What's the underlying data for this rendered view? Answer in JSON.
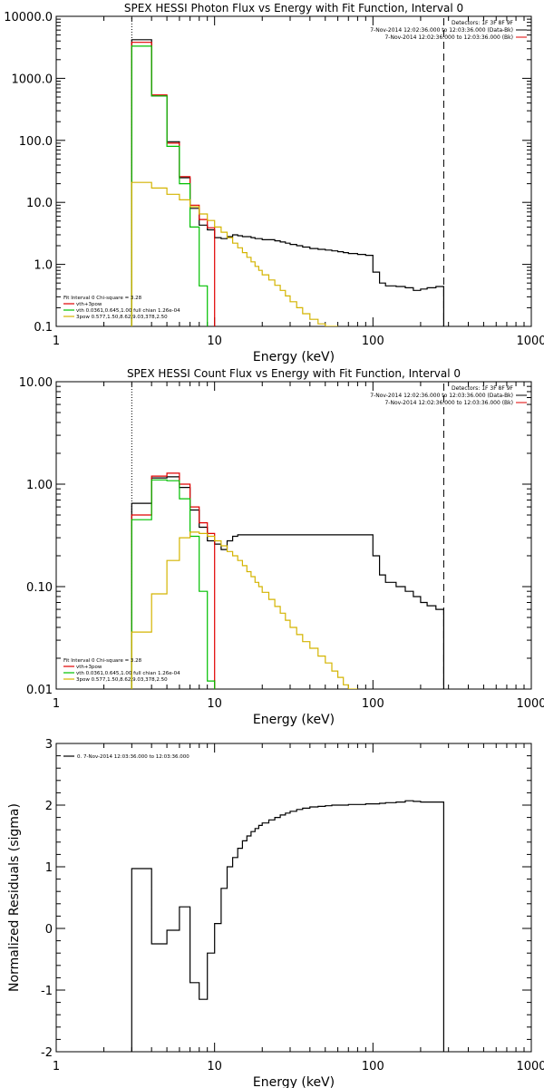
{
  "chart_data": [
    {
      "type": "line",
      "title": "SPEX HESSI Photon Flux vs Energy with Fit Function, Interval 0",
      "xlabel": "Energy (keV)",
      "ylabel": "",
      "xscale": "log",
      "yscale": "log",
      "xlim": [
        1,
        1000
      ],
      "ylim": [
        0.1,
        10000
      ],
      "x_ticks": [
        "1",
        "10",
        "100",
        "1000"
      ],
      "y_ticks": [
        "0.1",
        "1.0",
        "10.0",
        "100.0",
        "1000.0",
        "10000.0"
      ],
      "header": [
        "Detectors: 1F 3F 8F 9F",
        "7-Nov-2014 12:02:36.000 to 12:03:36.000 (Data-Bk)",
        "7-Nov-2014 12:02:36.000 to 12:03:36.000 (Bk)"
      ],
      "legend_placement": "bottom-left",
      "legend": [
        "Fit Interval 0   Chi-square = 3.28",
        "vth+3pow",
        "vth 0.0361,0.645,1.00  full chian 1.26e-04",
        "3pow 0.577,1.50,8.62,9.03,378,2.50"
      ],
      "vlines": [
        {
          "x": 3.0,
          "style": "dotted"
        },
        {
          "x": 280,
          "style": "dashed"
        }
      ],
      "series": [
        {
          "name": "Data-Bk",
          "color": "#000000",
          "edges": [
            3,
            4,
            5,
            6,
            7,
            8,
            9,
            10,
            11,
            12,
            13,
            14,
            15,
            16,
            17,
            18,
            19,
            20,
            22,
            24,
            26,
            28,
            30,
            33,
            36,
            40,
            45,
            50,
            55,
            60,
            65,
            70,
            80,
            90,
            100,
            110,
            120,
            140,
            160,
            180,
            200,
            220,
            250,
            280
          ],
          "values": [
            4200,
            520,
            95,
            25,
            8,
            4.3,
            3.6,
            2.7,
            2.6,
            2.8,
            3.0,
            2.9,
            2.8,
            2.8,
            2.7,
            2.6,
            2.6,
            2.5,
            2.5,
            2.4,
            2.3,
            2.2,
            2.1,
            2.0,
            1.9,
            1.8,
            1.75,
            1.7,
            1.65,
            1.6,
            1.55,
            1.5,
            1.45,
            1.4,
            0.75,
            0.5,
            0.45,
            0.44,
            0.42,
            0.38,
            0.4,
            0.42,
            0.44
          ]
        },
        {
          "name": "vth+3pow",
          "color": "#e00000",
          "edges": [
            3,
            4,
            5,
            6,
            7,
            8,
            9,
            10
          ],
          "values": [
            3800,
            540,
            90,
            26,
            9,
            5.3,
            3.9
          ]
        },
        {
          "name": "vth",
          "color": "#00c000",
          "edges": [
            3,
            4,
            5,
            6,
            7,
            8,
            9
          ],
          "values": [
            3300,
            520,
            80,
            20,
            4,
            0.45
          ]
        },
        {
          "name": "3pow",
          "color": "#d4b400",
          "edges": [
            3,
            4,
            5,
            6,
            7,
            8,
            9,
            10,
            11,
            12,
            13,
            14,
            15,
            16,
            17,
            18,
            19,
            20,
            22,
            24,
            26,
            28,
            30,
            33,
            36,
            40,
            45,
            50,
            55,
            60
          ],
          "values": [
            21,
            17,
            13.5,
            11,
            8.5,
            6.5,
            5.1,
            4.0,
            3.3,
            2.7,
            2.2,
            1.85,
            1.55,
            1.3,
            1.1,
            0.93,
            0.8,
            0.68,
            0.56,
            0.46,
            0.38,
            0.31,
            0.25,
            0.2,
            0.16,
            0.13,
            0.11,
            0.1,
            0.1
          ]
        }
      ]
    },
    {
      "type": "line",
      "title": "SPEX HESSI Count Flux vs Energy with Fit Function, Interval 0",
      "xlabel": "Energy (keV)",
      "ylabel": "",
      "xscale": "log",
      "yscale": "log",
      "xlim": [
        1,
        1000
      ],
      "ylim": [
        0.01,
        10
      ],
      "x_ticks": [
        "1",
        "10",
        "100",
        "1000"
      ],
      "y_ticks": [
        "0.01",
        "0.10",
        "1.00",
        "10.00"
      ],
      "header": [
        "Detectors: 1F 3F 8F 9F",
        "7-Nov-2014 12:02:36.000 to 12:03:36.000 (Data-Bk)",
        "7-Nov-2014 12:02:36.000 to 12:03:36.000 (Bk)"
      ],
      "legend_placement": "bottom-left",
      "legend": [
        "Fit Interval 0   Chi-square = 3.28",
        "vth+3pow",
        "vth 0.0361,0.645,1.00  full chian 1.26e-04",
        "3pow 0.577,1.50,8.62,9.03,378,2.50"
      ],
      "vlines": [
        {
          "x": 3.0,
          "style": "dotted"
        },
        {
          "x": 280,
          "style": "dashed"
        }
      ],
      "series": [
        {
          "name": "Data-Bk",
          "color": "#000000",
          "edges": [
            3,
            4,
            5,
            6,
            7,
            8,
            9,
            10,
            11,
            12,
            13,
            14,
            15,
            16,
            18,
            20,
            22,
            25,
            28,
            32,
            36,
            40,
            45,
            50,
            60,
            70,
            80,
            90,
            100,
            110,
            120,
            140,
            160,
            180,
            200,
            220,
            250,
            280
          ],
          "values": [
            0.65,
            1.15,
            1.18,
            0.93,
            0.56,
            0.38,
            0.28,
            0.26,
            0.23,
            0.28,
            0.31,
            0.32,
            0.32,
            0.32,
            0.32,
            0.32,
            0.32,
            0.32,
            0.32,
            0.32,
            0.32,
            0.32,
            0.32,
            0.32,
            0.32,
            0.32,
            0.32,
            0.32,
            0.2,
            0.13,
            0.11,
            0.1,
            0.09,
            0.08,
            0.07,
            0.065,
            0.06
          ]
        },
        {
          "name": "vth+3pow",
          "color": "#e00000",
          "edges": [
            3,
            4,
            5,
            6,
            7,
            8,
            9,
            10
          ],
          "values": [
            0.5,
            1.2,
            1.28,
            1.0,
            0.6,
            0.42,
            0.33
          ]
        },
        {
          "name": "vth",
          "color": "#00c000",
          "edges": [
            3,
            4,
            5,
            6,
            7,
            8,
            9,
            10
          ],
          "values": [
            0.45,
            1.1,
            1.08,
            0.72,
            0.31,
            0.09,
            0.012
          ]
        },
        {
          "name": "3pow",
          "color": "#d4b400",
          "edges": [
            3,
            4,
            5,
            6,
            7,
            8,
            9,
            10,
            11,
            12,
            13,
            14,
            15,
            16,
            17,
            18,
            19,
            20,
            22,
            24,
            26,
            28,
            30,
            33,
            36,
            40,
            45,
            50,
            55,
            60,
            65,
            70,
            80
          ],
          "values": [
            0.036,
            0.085,
            0.18,
            0.3,
            0.34,
            0.33,
            0.31,
            0.28,
            0.25,
            0.22,
            0.2,
            0.18,
            0.16,
            0.14,
            0.125,
            0.11,
            0.1,
            0.088,
            0.075,
            0.064,
            0.055,
            0.047,
            0.04,
            0.034,
            0.029,
            0.025,
            0.021,
            0.018,
            0.015,
            0.013,
            0.011,
            0.01
          ]
        }
      ]
    },
    {
      "type": "line",
      "title": "",
      "xlabel": "Energy (keV)",
      "ylabel": "Normalized Residuals (sigma)",
      "xscale": "log",
      "yscale": "linear",
      "xlim": [
        1,
        1000
      ],
      "ylim": [
        -2,
        3
      ],
      "x_ticks": [
        "1",
        "10",
        "100",
        "1000"
      ],
      "y_ticks": [
        "-2",
        "-1",
        "0",
        "1",
        "2",
        "3"
      ],
      "legend_placement": "top-left",
      "legend": [
        "0. 7-Nov-2014 12:03:36.000 to 12:03:36.000"
      ],
      "series": [
        {
          "name": "0. 7-Nov-2014 12:03:36.000 to 12:03:36.000",
          "color": "#000000",
          "edges": [
            3,
            4,
            5,
            6,
            7,
            8,
            9,
            10,
            11,
            12,
            13,
            14,
            15,
            16,
            17,
            18,
            19,
            20,
            22,
            24,
            26,
            28,
            30,
            33,
            36,
            40,
            45,
            50,
            55,
            60,
            65,
            70,
            80,
            90,
            100,
            110,
            120,
            140,
            160,
            180,
            200,
            220,
            250,
            280
          ],
          "values": [
            0.97,
            -0.25,
            -0.03,
            0.35,
            -0.88,
            -1.15,
            -0.4,
            0.08,
            0.65,
            1.0,
            1.15,
            1.3,
            1.42,
            1.5,
            1.57,
            1.62,
            1.67,
            1.71,
            1.76,
            1.8,
            1.84,
            1.87,
            1.9,
            1.93,
            1.95,
            1.97,
            1.98,
            1.99,
            2.0,
            2.0,
            2.0,
            2.01,
            2.01,
            2.02,
            2.02,
            2.03,
            2.04,
            2.05,
            2.07,
            2.06,
            2.05,
            2.05,
            2.05
          ],
          "floor": -2
        }
      ]
    }
  ]
}
